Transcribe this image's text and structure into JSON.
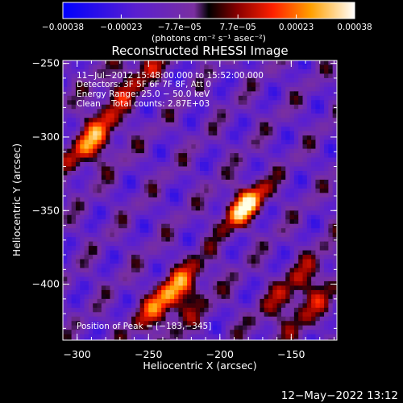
{
  "chart_data": {
    "type": "heatmap",
    "title": "Reconstructed RHESSI Image",
    "xlabel": "Heliocentric X (arcsec)",
    "ylabel": "Heliocentric Y (arcsec)",
    "xlim": [
      -310,
      -118
    ],
    "ylim": [
      -438,
      -248
    ],
    "x_ticks": [
      -300,
      -250,
      -200,
      -150
    ],
    "x_tick_labels": [
      "−300",
      "−250",
      "−200",
      "−150"
    ],
    "y_ticks": [
      -250,
      -300,
      -350,
      -400
    ],
    "y_tick_labels": [
      "−250",
      "−300",
      "−350",
      "−400"
    ],
    "colorbar": {
      "range": [
        -0.00038,
        0.00038
      ],
      "tick_labels": [
        "−0.00038",
        "−0.00023",
        "−7.7e−05",
        "7.7e−05",
        "0.00023",
        "0.00038"
      ],
      "unit_label": "(photons cm⁻² s⁻¹ asec⁻²)"
    },
    "annotations": [
      "11−Jul−2012 15:48:00.000 to 15:52:00.000",
      "Detectors: 3F 5F 6F 7F 8F, Att 0",
      "Energy Range: 25.0 − 50.0 keV",
      "Clean    Total counts: 2.87E+03"
    ],
    "peak_label": "Position of Peak = [−183,−345]",
    "peak": [
      -183,
      -345
    ],
    "sources": [
      {
        "x": -183,
        "y": -346,
        "sx": 13,
        "sy": 8,
        "amp": 1.0
      },
      {
        "x": -232,
        "y": -410,
        "sx": 20,
        "sy": 10,
        "amp": 0.92
      },
      {
        "x": -288,
        "y": -305,
        "sx": 16,
        "sy": 9,
        "amp": 0.72
      },
      {
        "x": -143,
        "y": -408,
        "sx": 22,
        "sy": 11,
        "amp": 0.62
      },
      {
        "x": -263,
        "y": -259,
        "sx": 30,
        "sy": 8,
        "amp": 0.55
      }
    ]
  },
  "footer_timestamp": "12−May−2022 13:12"
}
